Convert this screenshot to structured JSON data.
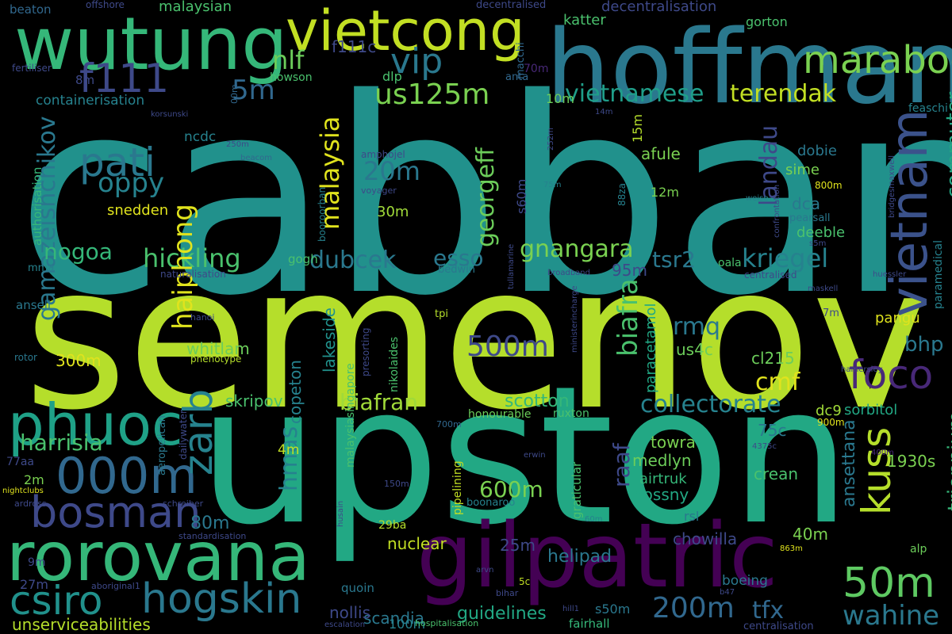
{
  "words": [
    {
      "text": "cabban",
      "color": "#21918c"
    },
    {
      "text": "semenov",
      "color": "#b5de2b"
    },
    {
      "text": "upston",
      "color": "#22a884"
    },
    {
      "text": "hoffmann",
      "color": "#2a788e"
    },
    {
      "text": "wutung",
      "color": "#35b779"
    },
    {
      "text": "gilpatric",
      "color": "#440154"
    },
    {
      "text": "vietcong",
      "color": "#c2df23"
    },
    {
      "text": "rorovana",
      "color": "#35b779"
    },
    {
      "text": "phuoc",
      "color": "#1fa187"
    },
    {
      "text": "vietnam",
      "color": "#3b528b"
    },
    {
      "text": "000m",
      "color": "#31688e"
    },
    {
      "text": "bosman",
      "color": "#3e4989"
    },
    {
      "text": "hogskin",
      "color": "#2a788e"
    },
    {
      "text": "csiro",
      "color": "#21918c"
    },
    {
      "text": "50m",
      "color": "#5ec962"
    },
    {
      "text": "maraboon",
      "color": "#7ad151"
    },
    {
      "text": "foco",
      "color": "#482878"
    },
    {
      "text": "kuss",
      "color": "#b5de2b"
    },
    {
      "text": "vip",
      "color": "#2a788e"
    },
    {
      "text": "f111",
      "color": "#3e4989"
    },
    {
      "text": "pati",
      "color": "#2a788e"
    },
    {
      "text": "zarb",
      "color": "#26828e"
    },
    {
      "text": "200m",
      "color": "#31688e"
    },
    {
      "text": "wahine",
      "color": "#2a788e"
    },
    {
      "text": "500m",
      "color": "#3e4989"
    },
    {
      "text": "us125m",
      "color": "#7ad151"
    },
    {
      "text": "vietnamese",
      "color": "#1f9e89"
    },
    {
      "text": "terendak",
      "color": "#c2df23"
    },
    {
      "text": "landau",
      "color": "#3e4989"
    },
    {
      "text": "commuter",
      "color": "#22a884"
    },
    {
      "text": "georgeff",
      "color": "#6ccd5a"
    },
    {
      "text": "malaysia",
      "color": "#e0e31d"
    },
    {
      "text": "20m",
      "color": "#2a788e"
    },
    {
      "text": "oppy",
      "color": "#26828e"
    },
    {
      "text": "nlf",
      "color": "#6ccd5a"
    },
    {
      "text": "5m",
      "color": "#31688e"
    },
    {
      "text": "gamazeishchikov",
      "color": "#2a788e"
    },
    {
      "text": "hickling",
      "color": "#4ac16d"
    },
    {
      "text": "nogoa",
      "color": "#35b779"
    },
    {
      "text": "dubcek",
      "color": "#2a788e"
    },
    {
      "text": "esso",
      "color": "#2a788e"
    },
    {
      "text": "gnangara",
      "color": "#7ad151"
    },
    {
      "text": "kriegel",
      "color": "#26828e"
    },
    {
      "text": "tsr2",
      "color": "#2a788e"
    },
    {
      "text": "haiphong",
      "color": "#e0e31d"
    },
    {
      "text": "biafra",
      "color": "#4ac16d"
    },
    {
      "text": "rmq",
      "color": "#2a788e"
    },
    {
      "text": "cmf",
      "color": "#e0e31d"
    },
    {
      "text": "bhp",
      "color": "#2a788e"
    },
    {
      "text": "triennium",
      "color": "#35b779"
    },
    {
      "text": "collectorate",
      "color": "#26828e"
    },
    {
      "text": "biafran",
      "color": "#a0da39"
    },
    {
      "text": "harrisia",
      "color": "#4ac16d"
    },
    {
      "text": "hmas",
      "color": "#26828e"
    },
    {
      "text": "raaf",
      "color": "#3e4989"
    },
    {
      "text": "600m",
      "color": "#7ad151"
    },
    {
      "text": "80m",
      "color": "#2a788e"
    },
    {
      "text": "ansettana",
      "color": "#2a788e"
    },
    {
      "text": "crean",
      "color": "#4ac16d"
    },
    {
      "text": "25m",
      "color": "#3e4989"
    },
    {
      "text": "nuclear",
      "color": "#c2df23"
    },
    {
      "text": "helipad",
      "color": "#2a788e"
    },
    {
      "text": "chowilla",
      "color": "#3e4989"
    },
    {
      "text": "40m",
      "color": "#7ad151"
    },
    {
      "text": "tfx",
      "color": "#31688e"
    },
    {
      "text": "guidelines",
      "color": "#22a884"
    },
    {
      "text": "scandia",
      "color": "#2a788e"
    },
    {
      "text": "nollis",
      "color": "#3e4989"
    },
    {
      "text": "unserviceabilities",
      "color": "#b5de2b"
    },
    {
      "text": "whitlam",
      "color": "#6ccd5a"
    },
    {
      "text": "skripov",
      "color": "#4ac16d"
    },
    {
      "text": "scotton",
      "color": "#35b779"
    },
    {
      "text": "towra",
      "color": "#7ad151"
    },
    {
      "text": "medlyn",
      "color": "#6ccd5a"
    },
    {
      "text": "hossny",
      "color": "#22a884"
    },
    {
      "text": "75c",
      "color": "#2a788e"
    },
    {
      "text": "1930s",
      "color": "#7ad151"
    },
    {
      "text": "airtruk",
      "color": "#35b779"
    },
    {
      "text": "us4c",
      "color": "#6ccd5a"
    },
    {
      "text": "95m",
      "color": "#3e4989"
    },
    {
      "text": "300m",
      "color": "#e0e31d"
    },
    {
      "text": "copeton",
      "color": "#26828e"
    },
    {
      "text": "lakeside",
      "color": "#21918c"
    },
    {
      "text": "paracetamol",
      "color": "#22a884"
    },
    {
      "text": "sorbitol",
      "color": "#22a884"
    },
    {
      "text": "dc9",
      "color": "#a0da39"
    },
    {
      "text": "cl215",
      "color": "#6ccd5a"
    },
    {
      "text": "pangu",
      "color": "#e0e31d"
    },
    {
      "text": "afule",
      "color": "#7ad151"
    },
    {
      "text": "sime",
      "color": "#7ad151"
    },
    {
      "text": "dca",
      "color": "#2a788e"
    },
    {
      "text": "dobie",
      "color": "#2a788e"
    },
    {
      "text": "deeble",
      "color": "#4ac16d"
    },
    {
      "text": "snedden",
      "color": "#e0e31d"
    },
    {
      "text": "30m",
      "color": "#a0da39"
    },
    {
      "text": "s60m",
      "color": "#3e4989"
    },
    {
      "text": "12m",
      "color": "#7ad151"
    },
    {
      "text": "15m",
      "color": "#b5de2b"
    },
    {
      "text": "10m",
      "color": "#6ccd5a"
    },
    {
      "text": "dlp",
      "color": "#4ac16d"
    },
    {
      "text": "70m",
      "color": "#482878"
    },
    {
      "text": "f111c",
      "color": "#3e4989"
    },
    {
      "text": "katter",
      "color": "#4ac16d"
    },
    {
      "text": "gorton",
      "color": "#4ac16d"
    },
    {
      "text": "decentralisation",
      "color": "#3e4989"
    },
    {
      "text": "malaysian",
      "color": "#4ac16d"
    },
    {
      "text": "beaton",
      "color": "#31688e"
    },
    {
      "text": "offshore",
      "color": "#3e4989"
    },
    {
      "text": "decentralised",
      "color": "#3e4989"
    },
    {
      "text": "macchi",
      "color": "#31688e"
    },
    {
      "text": "fertiliser",
      "color": "#3e4989"
    },
    {
      "text": "howson",
      "color": "#4ac16d"
    },
    {
      "text": "anta",
      "color": "#31688e"
    },
    {
      "text": "8m",
      "color": "#3e4989"
    },
    {
      "text": "containerisation",
      "color": "#26828e"
    },
    {
      "text": "00m",
      "color": "#31688e"
    },
    {
      "text": "korsunski",
      "color": "#3e4989"
    },
    {
      "text": "14m",
      "color": "#3e4989"
    },
    {
      "text": "feaschi",
      "color": "#26828e"
    },
    {
      "text": "ncdc",
      "color": "#26828e"
    },
    {
      "text": "250m",
      "color": "#3e4989"
    },
    {
      "text": "beacom",
      "color": "#31688e"
    },
    {
      "text": "amphojel",
      "color": "#3e4989"
    },
    {
      "text": "252m",
      "color": "#3e4989"
    },
    {
      "text": "75m",
      "color": "#26828e"
    },
    {
      "text": "88za",
      "color": "#26828e"
    },
    {
      "text": "voyager",
      "color": "#3e4989"
    },
    {
      "text": "booroorban",
      "color": "#26828e"
    },
    {
      "text": "confrontation",
      "color": "#3e4989"
    },
    {
      "text": "weise",
      "color": "#26828e"
    },
    {
      "text": "800m",
      "color": "#e0e31d"
    },
    {
      "text": "bridgesmaxwell",
      "color": "#3e4989"
    },
    {
      "text": "pearsall",
      "color": "#2a788e"
    },
    {
      "text": "s5m",
      "color": "#3e4989"
    },
    {
      "text": "authorisation",
      "color": "#35b779"
    },
    {
      "text": "mma",
      "color": "#26828e"
    },
    {
      "text": "gogh",
      "color": "#4ac16d"
    },
    {
      "text": "bedwin",
      "color": "#2a788e"
    },
    {
      "text": "tullamarine",
      "color": "#3e4989"
    },
    {
      "text": "broadband",
      "color": "#3e4989"
    },
    {
      "text": "oala",
      "color": "#4ac16d"
    },
    {
      "text": "huessler",
      "color": "#3e4989"
    },
    {
      "text": "centralised",
      "color": "#3e4989"
    },
    {
      "text": "naturalisation",
      "color": "#3e4989"
    },
    {
      "text": "maskell",
      "color": "#3e4989"
    },
    {
      "text": "ansell",
      "color": "#2a788e"
    },
    {
      "text": "paramedical",
      "color": "#26828e"
    },
    {
      "text": "ministerincharge",
      "color": "#3e4989"
    },
    {
      "text": "hanoi",
      "color": "#3e4989"
    },
    {
      "text": "tpi",
      "color": "#b5de2b"
    },
    {
      "text": "7m",
      "color": "#3e4989"
    },
    {
      "text": "rotor",
      "color": "#2a788e"
    },
    {
      "text": "phenotype",
      "color": "#b5de2b"
    },
    {
      "text": "presorting",
      "color": "#3e4989"
    },
    {
      "text": "nikolaides",
      "color": "#4ac16d"
    },
    {
      "text": "hamersley",
      "color": "#3e4989"
    },
    {
      "text": "honourable",
      "color": "#6ccd5a"
    },
    {
      "text": "ruxton",
      "color": "#4ac16d"
    },
    {
      "text": "malaysiasingapore",
      "color": "#4ac16d"
    },
    {
      "text": "aeropelican",
      "color": "#2a788e"
    },
    {
      "text": "dailywater",
      "color": "#3e4989"
    },
    {
      "text": "700m",
      "color": "#31688e"
    },
    {
      "text": "graticular",
      "color": "#4ac16d"
    },
    {
      "text": "900m",
      "color": "#e0e31d"
    },
    {
      "text": "4375c",
      "color": "#3e4989"
    },
    {
      "text": "erwin",
      "color": "#3e4989"
    },
    {
      "text": "400m",
      "color": "#482878"
    },
    {
      "text": "77aa",
      "color": "#3e4989"
    },
    {
      "text": "4m",
      "color": "#c2df23"
    },
    {
      "text": "2m",
      "color": "#7ad151"
    },
    {
      "text": "nightclubs",
      "color": "#e0e31d"
    },
    {
      "text": "ardross",
      "color": "#3e4989"
    },
    {
      "text": "schreiber",
      "color": "#3e4989"
    },
    {
      "text": "150m",
      "color": "#3e4989"
    },
    {
      "text": "pipelining",
      "color": "#c2df23"
    },
    {
      "text": "boonaroo",
      "color": "#26828e"
    },
    {
      "text": "29ba",
      "color": "#b5de2b"
    },
    {
      "text": "husain",
      "color": "#3e4989"
    },
    {
      "text": "60m",
      "color": "#26828e"
    },
    {
      "text": "rsl",
      "color": "#2a788e"
    },
    {
      "text": "863m",
      "color": "#e0e31d"
    },
    {
      "text": "standardisation",
      "color": "#3e4989"
    },
    {
      "text": "alp",
      "color": "#6ccd5a"
    },
    {
      "text": "9m",
      "color": "#3e4989"
    },
    {
      "text": "27m",
      "color": "#3e4989"
    },
    {
      "text": "aboriginal1",
      "color": "#3e4989"
    },
    {
      "text": "arvn",
      "color": "#3e4989"
    },
    {
      "text": "5c",
      "color": "#c2df23"
    },
    {
      "text": "bihar",
      "color": "#3e4989"
    },
    {
      "text": "quoin",
      "color": "#2a788e"
    },
    {
      "text": "hill1",
      "color": "#3e4989"
    },
    {
      "text": "boeing",
      "color": "#2a788e"
    },
    {
      "text": "b47",
      "color": "#3e4989"
    },
    {
      "text": "s50m",
      "color": "#2a788e"
    },
    {
      "text": "fairhall",
      "color": "#35b779"
    },
    {
      "text": "100m",
      "color": "#26828e"
    },
    {
      "text": "escalation",
      "color": "#3e4989"
    },
    {
      "text": "hospitalisation",
      "color": "#4ac16d"
    },
    {
      "text": "centralisation",
      "color": "#3e4989"
    }
  ]
}
